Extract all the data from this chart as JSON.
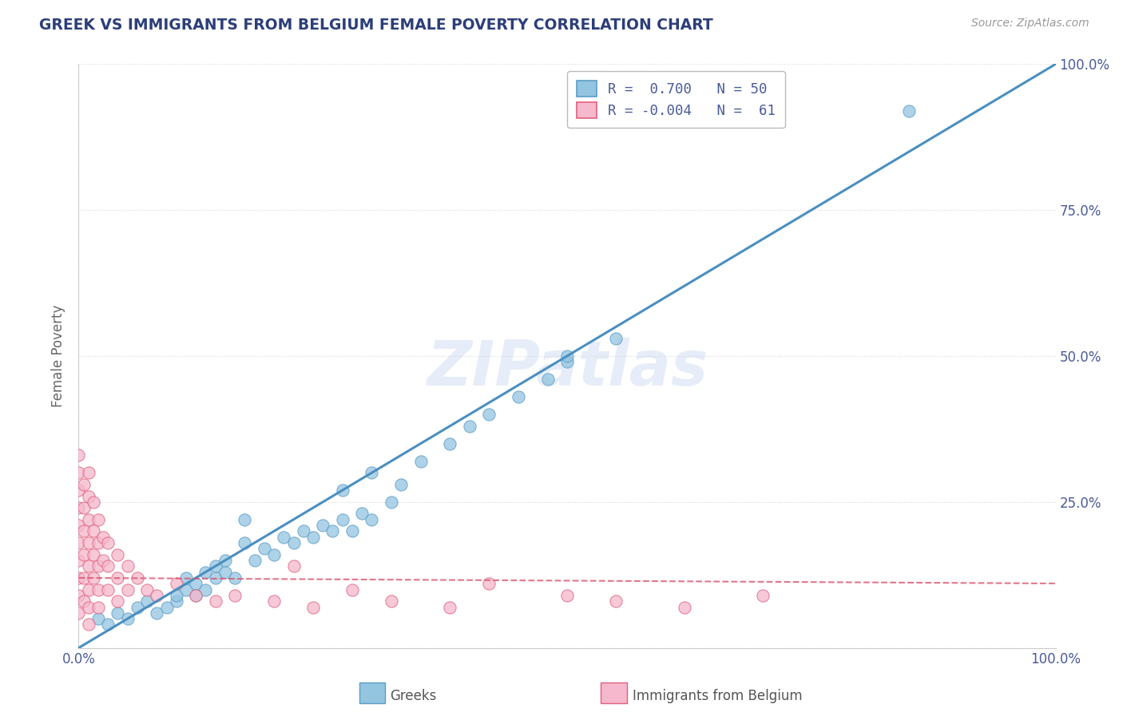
{
  "title": "GREEK VS IMMIGRANTS FROM BELGIUM FEMALE POVERTY CORRELATION CHART",
  "source": "Source: ZipAtlas.com",
  "ylabel": "Female Poverty",
  "xlim": [
    0.0,
    1.0
  ],
  "ylim": [
    0.0,
    1.0
  ],
  "blue_color": "#93c4e0",
  "blue_edge": "#5b9dc9",
  "pink_color": "#f5b8cc",
  "pink_edge": "#e0607e",
  "line_blue": "#4a8fc0",
  "line_pink": "#d9546e",
  "R_blue": 0.7,
  "N_blue": 50,
  "R_pink": -0.004,
  "N_pink": 61,
  "watermark": "ZIPatlas",
  "legend_labels": [
    "Greeks",
    "Immigrants from Belgium"
  ],
  "blue_scatter_x": [
    0.02,
    0.03,
    0.04,
    0.05,
    0.06,
    0.07,
    0.08,
    0.09,
    0.1,
    0.1,
    0.11,
    0.11,
    0.12,
    0.12,
    0.13,
    0.13,
    0.14,
    0.14,
    0.15,
    0.15,
    0.16,
    0.17,
    0.17,
    0.18,
    0.19,
    0.2,
    0.21,
    0.22,
    0.23,
    0.24,
    0.25,
    0.26,
    0.27,
    0.28,
    0.29,
    0.3,
    0.32,
    0.27,
    0.3,
    0.33,
    0.35,
    0.38,
    0.4,
    0.42,
    0.45,
    0.48,
    0.5,
    0.55,
    0.85,
    0.5
  ],
  "blue_scatter_y": [
    0.05,
    0.04,
    0.06,
    0.05,
    0.07,
    0.08,
    0.06,
    0.07,
    0.08,
    0.09,
    0.1,
    0.12,
    0.09,
    0.11,
    0.1,
    0.13,
    0.12,
    0.14,
    0.13,
    0.15,
    0.12,
    0.22,
    0.18,
    0.15,
    0.17,
    0.16,
    0.19,
    0.18,
    0.2,
    0.19,
    0.21,
    0.2,
    0.22,
    0.2,
    0.23,
    0.22,
    0.25,
    0.27,
    0.3,
    0.28,
    0.32,
    0.35,
    0.38,
    0.4,
    0.43,
    0.46,
    0.49,
    0.53,
    0.92,
    0.5
  ],
  "pink_scatter_x": [
    0.0,
    0.0,
    0.0,
    0.0,
    0.0,
    0.0,
    0.0,
    0.0,
    0.0,
    0.0,
    0.005,
    0.005,
    0.005,
    0.005,
    0.005,
    0.005,
    0.01,
    0.01,
    0.01,
    0.01,
    0.01,
    0.01,
    0.01,
    0.01,
    0.015,
    0.015,
    0.015,
    0.015,
    0.02,
    0.02,
    0.02,
    0.02,
    0.02,
    0.025,
    0.025,
    0.03,
    0.03,
    0.03,
    0.04,
    0.04,
    0.04,
    0.05,
    0.05,
    0.06,
    0.07,
    0.08,
    0.1,
    0.12,
    0.14,
    0.16,
    0.2,
    0.22,
    0.24,
    0.28,
    0.32,
    0.38,
    0.42,
    0.5,
    0.55,
    0.62,
    0.7
  ],
  "pink_scatter_y": [
    0.33,
    0.3,
    0.27,
    0.24,
    0.21,
    0.18,
    0.15,
    0.12,
    0.09,
    0.06,
    0.28,
    0.24,
    0.2,
    0.16,
    0.12,
    0.08,
    0.3,
    0.26,
    0.22,
    0.18,
    0.14,
    0.1,
    0.07,
    0.04,
    0.25,
    0.2,
    0.16,
    0.12,
    0.22,
    0.18,
    0.14,
    0.1,
    0.07,
    0.19,
    0.15,
    0.18,
    0.14,
    0.1,
    0.16,
    0.12,
    0.08,
    0.14,
    0.1,
    0.12,
    0.1,
    0.09,
    0.11,
    0.09,
    0.08,
    0.09,
    0.08,
    0.14,
    0.07,
    0.1,
    0.08,
    0.07,
    0.11,
    0.09,
    0.08,
    0.07,
    0.09
  ],
  "blue_line_x": [
    0.0,
    1.0
  ],
  "blue_line_y": [
    0.0,
    1.0
  ],
  "pink_line_y": 0.12,
  "grid_color": "#cccccc",
  "background_color": "#ffffff",
  "title_color": "#2c3e7a",
  "tick_color": "#4a5a9a",
  "ylabel_color": "#666666"
}
